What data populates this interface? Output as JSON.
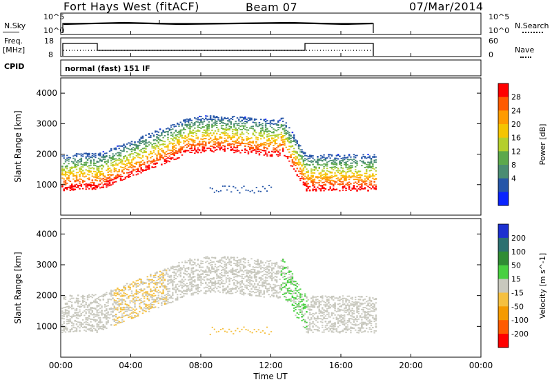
{
  "header": {
    "site": "Fort Hays West (fitACF)",
    "beam": "Beam 07",
    "date": "07/Mar/2014"
  },
  "top_panels": {
    "nsky_label": "N.Sky",
    "nsky_ticks": [
      "10^5",
      "10^0"
    ],
    "nsearch_label": "N.Search",
    "nsearch_ticks": [
      "10^5",
      "10^0"
    ],
    "freq_label": "Freq.",
    "freq_unit": "[MHz]",
    "freq_ticks": [
      "18",
      "8"
    ],
    "nave_label": "Nave",
    "nave_ticks": [
      "60",
      "0"
    ],
    "cpid_label": "CPID",
    "cpid_value": "normal (fast) 151 IF"
  },
  "chart_data": [
    {
      "type": "heatmap",
      "name": "power",
      "ylabel": "Slant Range [km]",
      "y_ticks": [
        "4000",
        "3000",
        "2000",
        "1000"
      ],
      "colorbar_label": "Power [dB]",
      "colorbar_ticks": [
        "28",
        "24",
        "20",
        "16",
        "12",
        "8",
        "4"
      ],
      "colorbar_colors": [
        "#ff0000",
        "#ff5a00",
        "#ff9b00",
        "#f5c400",
        "#b4cf2c",
        "#5ca84c",
        "#4a8c72",
        "#2656a8",
        "#0a23ff"
      ],
      "ylim": [
        0,
        4500
      ],
      "xlim_hours": [
        0,
        24
      ]
    },
    {
      "type": "heatmap",
      "name": "velocity",
      "ylabel": "Slant Range [km]",
      "y_ticks": [
        "4000",
        "3000",
        "2000",
        "1000"
      ],
      "colorbar_label": "Velocity [m s^-1]",
      "colorbar_ticks": [
        "200",
        "100",
        "50",
        "15",
        "-15",
        "-50",
        "-100",
        "-200"
      ],
      "colorbar_colors": [
        "#1c30d0",
        "#2c7070",
        "#308c34",
        "#48d040",
        "#c8c8be",
        "#f5c040",
        "#f59a00",
        "#ff5a00",
        "#ff0000"
      ],
      "ylim": [
        0,
        4500
      ],
      "xlim_hours": [
        0,
        24
      ]
    }
  ],
  "x_axis": {
    "ticks": [
      "00:00",
      "04:00",
      "08:00",
      "12:00",
      "16:00",
      "20:00",
      "00:00"
    ],
    "label": "Time UT"
  }
}
